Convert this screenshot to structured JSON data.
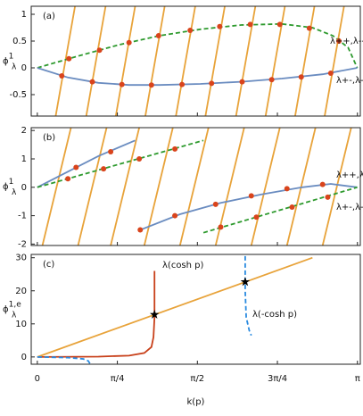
{
  "chart_data": [
    {
      "type": "line",
      "label": "(a)",
      "ylabel": {
        "symbol": "ϕ",
        "superscript": "1",
        "subscript": "λ"
      },
      "xlim": [
        -0.06,
        3.17
      ],
      "xticks": [
        0,
        0.7854,
        1.5708,
        2.3562,
        3.1416
      ],
      "xtick_labels": false,
      "ylim": [
        -0.9,
        1.15
      ],
      "yticks": [
        1,
        0.5,
        0,
        -0.5
      ],
      "annotations": [
        "λ++,λ--",
        "λ+-,λ-+"
      ],
      "series": [
        {
          "color": "#e8a33a",
          "style": "solid",
          "x": [
            0.18,
            0.37,
            null,
            0.48,
            0.67,
            null,
            0.77,
            0.96,
            null,
            1.06,
            1.25,
            null,
            1.36,
            1.55,
            null,
            1.65,
            1.84,
            null,
            1.95,
            2.14,
            null,
            2.24,
            2.43,
            null,
            2.53,
            2.72,
            null,
            2.82,
            3.01
          ],
          "values": [
            -0.9,
            1.15,
            null,
            -0.9,
            1.15,
            null,
            -0.9,
            1.15,
            null,
            -0.9,
            1.15,
            null,
            -0.9,
            1.15,
            null,
            -0.9,
            1.15,
            null,
            -0.9,
            1.15,
            null,
            -0.9,
            1.15,
            null,
            -0.9,
            1.15,
            null,
            -0.9,
            1.15
          ]
        },
        {
          "color": "#2e9a2e",
          "style": "dashed",
          "x": [
            0,
            0.4,
            0.8,
            1.2,
            1.6,
            2.0,
            2.4,
            2.7,
            2.9,
            3.05,
            3.14
          ],
          "values": [
            0,
            0.22,
            0.43,
            0.6,
            0.72,
            0.8,
            0.82,
            0.75,
            0.6,
            0.38,
            0
          ]
        },
        {
          "color": "#6a8cc0",
          "style": "solid",
          "x": [
            0,
            0.3,
            0.6,
            0.9,
            1.2,
            1.6,
            2.0,
            2.4,
            2.8,
            3.14
          ],
          "values": [
            0,
            -0.18,
            -0.28,
            -0.32,
            -0.32,
            -0.3,
            -0.26,
            -0.2,
            -0.12,
            0
          ]
        },
        {
          "color": "#d9441c",
          "style": "dots",
          "x": [
            0.31,
            0.61,
            0.9,
            1.19,
            1.5,
            1.79,
            2.09,
            2.38,
            2.67,
            2.96,
            0.24,
            0.54,
            0.83,
            1.12,
            1.42,
            1.71,
            2.01,
            2.3,
            2.59,
            2.88
          ],
          "values": [
            0.17,
            0.33,
            0.47,
            0.6,
            0.7,
            0.77,
            0.81,
            0.81,
            0.74,
            0.5,
            -0.15,
            -0.26,
            -0.31,
            -0.32,
            -0.31,
            -0.29,
            -0.26,
            -0.22,
            -0.17,
            -0.1
          ]
        }
      ]
    },
    {
      "type": "line",
      "label": "(b)",
      "ylabel": {
        "symbol": "ϕ",
        "superscript": "1",
        "subscript": "λ"
      },
      "xlim": [
        -0.06,
        3.17
      ],
      "xticks": [
        0,
        0.7854,
        1.5708,
        2.3562,
        3.1416
      ],
      "xtick_labels": false,
      "ylim": [
        -2.05,
        2.1
      ],
      "yticks": [
        2,
        1,
        0,
        -1,
        -2
      ],
      "annotations": [
        "λ++,λ--",
        "λ+-,λ-+"
      ],
      "series": [
        {
          "color": "#e8a33a",
          "style": "solid",
          "x": [
            0.05,
            0.33,
            null,
            0.4,
            0.68,
            null,
            0.72,
            1.0,
            null,
            1.05,
            1.33,
            null,
            1.4,
            1.68,
            null,
            1.75,
            2.03,
            null,
            2.1,
            2.38,
            null,
            2.45,
            2.73,
            null,
            2.8,
            3.08
          ],
          "values": [
            -2.05,
            2.1,
            null,
            -2.05,
            2.1,
            null,
            -2.05,
            2.1,
            null,
            -2.05,
            2.1,
            null,
            -2.05,
            2.1,
            null,
            -2.05,
            2.1,
            null,
            -2.05,
            2.1,
            null,
            -2.05,
            2.1,
            null,
            -2.05,
            2.1
          ]
        },
        {
          "color": "#6a8cc0",
          "style": "solid",
          "x": [
            0,
            0.3,
            0.6,
            0.96,
            null,
            0.99,
            1.4,
            1.8,
            2.2,
            2.6,
            2.88,
            3.14
          ],
          "values": [
            0,
            0.55,
            1.1,
            1.65,
            null,
            -1.53,
            -0.95,
            -0.55,
            -0.25,
            0,
            0.12,
            0
          ]
        },
        {
          "color": "#2e9a2e",
          "style": "dashed",
          "x": [
            0,
            1.63,
            null,
            1.63,
            3.14
          ],
          "values": [
            0,
            1.65,
            null,
            -1.6,
            0
          ]
        },
        {
          "color": "#d9441c",
          "style": "dots",
          "x": [
            0.38,
            0.72,
            0.3,
            0.65,
            1.0,
            1.35,
            1.01,
            1.35,
            1.75,
            2.1,
            2.45,
            2.8,
            1.8,
            2.15,
            2.5,
            2.85
          ],
          "values": [
            0.7,
            1.25,
            0.3,
            0.65,
            1.0,
            1.35,
            -1.5,
            -1.0,
            -0.6,
            -0.3,
            -0.05,
            0.1,
            -1.4,
            -1.05,
            -0.7,
            -0.35
          ]
        }
      ]
    },
    {
      "type": "line",
      "label": "(c)",
      "ylabel": {
        "symbol": "ϕ",
        "superscript": "1,e",
        "subscript": "λ"
      },
      "xlabel": "k(p)",
      "xlim": [
        -0.06,
        3.17
      ],
      "xticks": [
        0,
        {
          "value": 0.7854,
          "label": "π/4"
        },
        {
          "value": 1.5708,
          "label": "π/2"
        },
        {
          "value": 2.3562,
          "label": "3π/4"
        },
        {
          "value": 3.1416,
          "label": "π"
        }
      ],
      "ylim": [
        -2.2,
        31
      ],
      "yticks": [
        30,
        20,
        10,
        0
      ],
      "annotations": [
        "λ(cosh p)",
        "λ(-cosh p)"
      ],
      "series": [
        {
          "color": "#e8a33a",
          "style": "solid",
          "x": [
            0,
            2.7
          ],
          "values": [
            0,
            30
          ]
        },
        {
          "color": "#c8401a",
          "style": "solid",
          "x": [
            0,
            0.6,
            0.9,
            1.05,
            1.12,
            1.14,
            1.15,
            1.15
          ],
          "values": [
            0,
            0.1,
            0.4,
            1.2,
            3,
            6,
            12,
            26
          ]
        },
        {
          "color": "#2a8be0",
          "style": "dashed",
          "x": [
            0,
            0.3,
            0.45,
            0.5,
            0.52,
            null,
            2.04,
            2.04,
            2.05,
            2.08,
            2.1
          ],
          "values": [
            0,
            -0.2,
            -0.6,
            -1.2,
            -2.2,
            null,
            30.5,
            20,
            12,
            8,
            6.5
          ]
        },
        {
          "color": "#000000",
          "style": "stars",
          "x": [
            1.15,
            2.04
          ],
          "values": [
            12.8,
            22.7
          ]
        }
      ]
    }
  ]
}
